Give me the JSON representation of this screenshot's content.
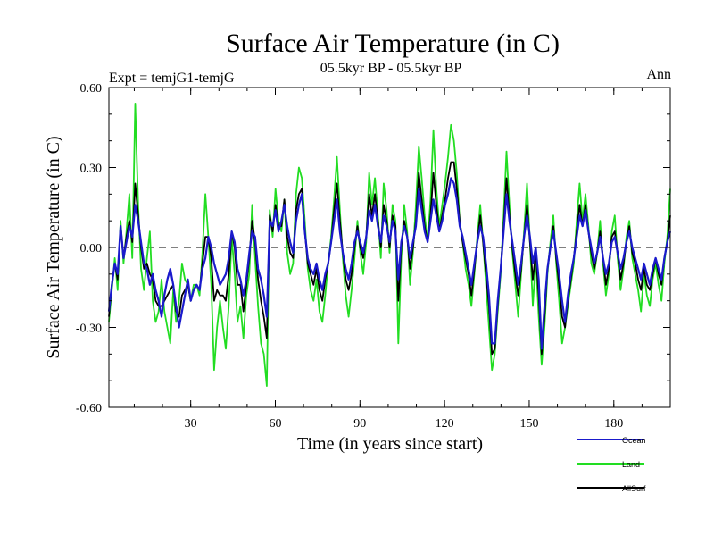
{
  "chart_data": {
    "type": "line",
    "title": "Surface Air Temperature (in C)",
    "subtitle": "05.5kyr BP - 05.5kyr BP",
    "left_label": "Expt = temjG1-temjG",
    "right_label": "Ann",
    "xlabel": "Time (in years since start)",
    "ylabel": "Surface Air Temperature (in C)",
    "xlim": [
      1,
      200
    ],
    "ylim": [
      -0.6,
      0.6
    ],
    "xticks": [
      30,
      60,
      90,
      120,
      150,
      180
    ],
    "yticks": [
      -0.6,
      -0.3,
      0.0,
      0.3,
      0.6
    ],
    "ytick_labels": [
      "-0.60",
      "-0.30",
      "0.00",
      "0.30",
      "0.60"
    ],
    "zero_line": "dashed",
    "legend_position": "bottom-right",
    "series": [
      {
        "name": "Ocean",
        "color": "#1a1acc",
        "values": [
          -0.24,
          -0.14,
          -0.06,
          -0.1,
          0.08,
          -0.04,
          0.02,
          0.08,
          0.04,
          0.16,
          0.1,
          0.02,
          -0.06,
          -0.08,
          -0.14,
          -0.1,
          -0.16,
          -0.2,
          -0.26,
          -0.18,
          -0.12,
          -0.08,
          -0.14,
          -0.22,
          -0.3,
          -0.24,
          -0.18,
          -0.12,
          -0.2,
          -0.16,
          -0.14,
          -0.16,
          -0.08,
          -0.04,
          0.04,
          0.0,
          -0.06,
          -0.1,
          -0.14,
          -0.12,
          -0.1,
          -0.04,
          0.06,
          0.02,
          -0.08,
          -0.12,
          -0.18,
          -0.12,
          -0.02,
          0.06,
          0.04,
          -0.08,
          -0.12,
          -0.18,
          -0.26,
          0.1,
          0.08,
          0.14,
          0.06,
          0.1,
          0.16,
          0.08,
          0.02,
          -0.02,
          0.1,
          0.16,
          0.2,
          0.06,
          -0.04,
          -0.08,
          -0.1,
          -0.06,
          -0.12,
          -0.16,
          -0.1,
          -0.06,
          0.02,
          0.1,
          0.18,
          0.06,
          -0.02,
          -0.08,
          -0.12,
          -0.06,
          0.02,
          0.06,
          0.02,
          -0.02,
          0.04,
          0.14,
          0.1,
          0.16,
          0.08,
          0.02,
          0.12,
          0.08,
          0.02,
          0.1,
          0.06,
          -0.12,
          0.02,
          0.08,
          0.04,
          -0.04,
          0.02,
          0.08,
          0.22,
          0.14,
          0.06,
          0.02,
          0.1,
          0.18,
          0.12,
          0.06,
          0.1,
          0.16,
          0.2,
          0.26,
          0.24,
          0.18,
          0.08,
          0.04,
          -0.02,
          -0.08,
          -0.14,
          -0.06,
          0.02,
          0.08,
          0.04,
          -0.06,
          -0.18,
          -0.36,
          -0.36,
          -0.2,
          -0.08,
          0.06,
          0.2,
          0.1,
          0.02,
          -0.06,
          -0.14,
          -0.06,
          0.04,
          0.12,
          0.04,
          -0.06,
          0.0,
          -0.12,
          -0.38,
          -0.22,
          -0.08,
          0.0,
          0.06,
          -0.02,
          -0.1,
          -0.2,
          -0.28,
          -0.18,
          -0.1,
          -0.04,
          0.04,
          0.12,
          0.08,
          0.14,
          0.06,
          0.0,
          -0.06,
          -0.02,
          0.04,
          -0.04,
          -0.1,
          -0.06,
          0.02,
          0.04,
          -0.02,
          -0.08,
          -0.04,
          0.02,
          0.06,
          0.0,
          -0.04,
          -0.08,
          -0.12,
          -0.06,
          -0.1,
          -0.14,
          -0.08,
          -0.04,
          -0.08,
          -0.12,
          -0.04,
          0.02,
          0.06
        ]
      },
      {
        "name": "Land",
        "color": "#22dd22",
        "values": [
          -0.28,
          -0.16,
          -0.04,
          -0.16,
          0.1,
          -0.06,
          0.06,
          0.2,
          -0.04,
          0.54,
          0.16,
          -0.08,
          -0.16,
          -0.04,
          0.06,
          -0.2,
          -0.28,
          -0.24,
          -0.12,
          -0.24,
          -0.3,
          -0.36,
          -0.16,
          -0.28,
          -0.2,
          -0.06,
          -0.12,
          -0.14,
          -0.2,
          -0.14,
          -0.14,
          -0.18,
          -0.02,
          0.2,
          0.04,
          -0.14,
          -0.46,
          -0.3,
          -0.2,
          -0.3,
          -0.38,
          -0.22,
          0.04,
          -0.1,
          -0.28,
          -0.22,
          -0.34,
          -0.18,
          -0.1,
          0.16,
          -0.04,
          -0.22,
          -0.36,
          -0.4,
          -0.52,
          0.14,
          0.04,
          0.22,
          0.1,
          0.06,
          0.18,
          -0.02,
          -0.1,
          -0.06,
          0.2,
          0.3,
          0.26,
          0.1,
          -0.08,
          -0.16,
          -0.2,
          -0.12,
          -0.24,
          -0.28,
          -0.18,
          -0.06,
          0.04,
          0.18,
          0.34,
          0.14,
          -0.04,
          -0.18,
          -0.26,
          -0.16,
          -0.04,
          0.1,
          -0.02,
          -0.1,
          0.02,
          0.28,
          0.16,
          0.26,
          0.12,
          -0.04,
          0.24,
          0.14,
          -0.02,
          0.16,
          0.1,
          -0.36,
          -0.04,
          0.16,
          0.06,
          -0.14,
          -0.02,
          0.16,
          0.38,
          0.26,
          0.12,
          0.02,
          0.18,
          0.44,
          0.22,
          0.08,
          0.16,
          0.24,
          0.34,
          0.46,
          0.4,
          0.28,
          0.1,
          0.02,
          -0.08,
          -0.14,
          -0.22,
          -0.1,
          0.04,
          0.16,
          0.02,
          -0.14,
          -0.3,
          -0.46,
          -0.4,
          -0.24,
          -0.1,
          0.12,
          0.36,
          0.16,
          -0.02,
          -0.14,
          -0.26,
          -0.1,
          0.06,
          0.24,
          0.02,
          -0.22,
          -0.04,
          -0.26,
          -0.44,
          -0.3,
          -0.1,
          0.02,
          0.12,
          -0.06,
          -0.2,
          -0.36,
          -0.3,
          -0.22,
          -0.14,
          -0.06,
          0.1,
          0.24,
          0.1,
          0.2,
          0.08,
          -0.06,
          -0.1,
          -0.02,
          0.1,
          -0.06,
          -0.18,
          -0.1,
          0.06,
          0.12,
          -0.04,
          -0.16,
          -0.08,
          0.04,
          0.1,
          -0.04,
          -0.1,
          -0.16,
          -0.24,
          -0.1,
          -0.18,
          -0.22,
          -0.12,
          -0.06,
          -0.14,
          -0.2,
          -0.06,
          0.04,
          0.22
        ]
      },
      {
        "name": "AllSurf",
        "color": "#000000",
        "values": [
          -0.26,
          -0.14,
          -0.06,
          -0.12,
          0.08,
          -0.04,
          0.04,
          0.1,
          0.02,
          0.24,
          0.12,
          0.0,
          -0.08,
          -0.06,
          -0.1,
          -0.12,
          -0.2,
          -0.22,
          -0.22,
          -0.2,
          -0.18,
          -0.16,
          -0.14,
          -0.24,
          -0.26,
          -0.18,
          -0.16,
          -0.14,
          -0.2,
          -0.16,
          -0.14,
          -0.16,
          -0.06,
          0.04,
          0.04,
          -0.04,
          -0.2,
          -0.16,
          -0.18,
          -0.18,
          -0.2,
          -0.1,
          0.06,
          0.0,
          -0.14,
          -0.14,
          -0.24,
          -0.14,
          -0.04,
          0.1,
          0.02,
          -0.12,
          -0.2,
          -0.26,
          -0.34,
          0.12,
          0.06,
          0.16,
          0.08,
          0.08,
          0.18,
          0.04,
          -0.02,
          -0.04,
          0.14,
          0.2,
          0.22,
          0.06,
          -0.06,
          -0.1,
          -0.14,
          -0.08,
          -0.16,
          -0.2,
          -0.12,
          -0.06,
          0.02,
          0.14,
          0.24,
          0.1,
          -0.02,
          -0.12,
          -0.16,
          -0.1,
          0.0,
          0.08,
          0.0,
          -0.04,
          0.04,
          0.2,
          0.12,
          0.2,
          0.1,
          0.0,
          0.16,
          0.1,
          0.0,
          0.12,
          0.08,
          -0.2,
          0.0,
          0.1,
          0.04,
          -0.08,
          0.0,
          0.1,
          0.28,
          0.18,
          0.08,
          0.02,
          0.12,
          0.28,
          0.16,
          0.06,
          0.12,
          0.18,
          0.26,
          0.32,
          0.32,
          0.22,
          0.1,
          0.02,
          -0.04,
          -0.1,
          -0.18,
          -0.08,
          0.02,
          0.12,
          0.02,
          -0.1,
          -0.22,
          -0.4,
          -0.38,
          -0.22,
          -0.08,
          0.08,
          0.26,
          0.12,
          0.0,
          -0.1,
          -0.18,
          -0.08,
          0.04,
          0.16,
          0.02,
          -0.12,
          -0.02,
          -0.18,
          -0.4,
          -0.26,
          -0.08,
          0.0,
          0.08,
          -0.04,
          -0.14,
          -0.26,
          -0.3,
          -0.2,
          -0.12,
          -0.04,
          0.06,
          0.16,
          0.08,
          0.16,
          0.06,
          -0.02,
          -0.08,
          -0.02,
          0.06,
          -0.04,
          -0.14,
          -0.08,
          0.04,
          0.06,
          -0.02,
          -0.12,
          -0.06,
          0.02,
          0.08,
          -0.02,
          -0.06,
          -0.12,
          -0.16,
          -0.08,
          -0.14,
          -0.16,
          -0.1,
          -0.04,
          -0.1,
          -0.14,
          -0.04,
          0.02,
          0.12
        ]
      }
    ]
  }
}
